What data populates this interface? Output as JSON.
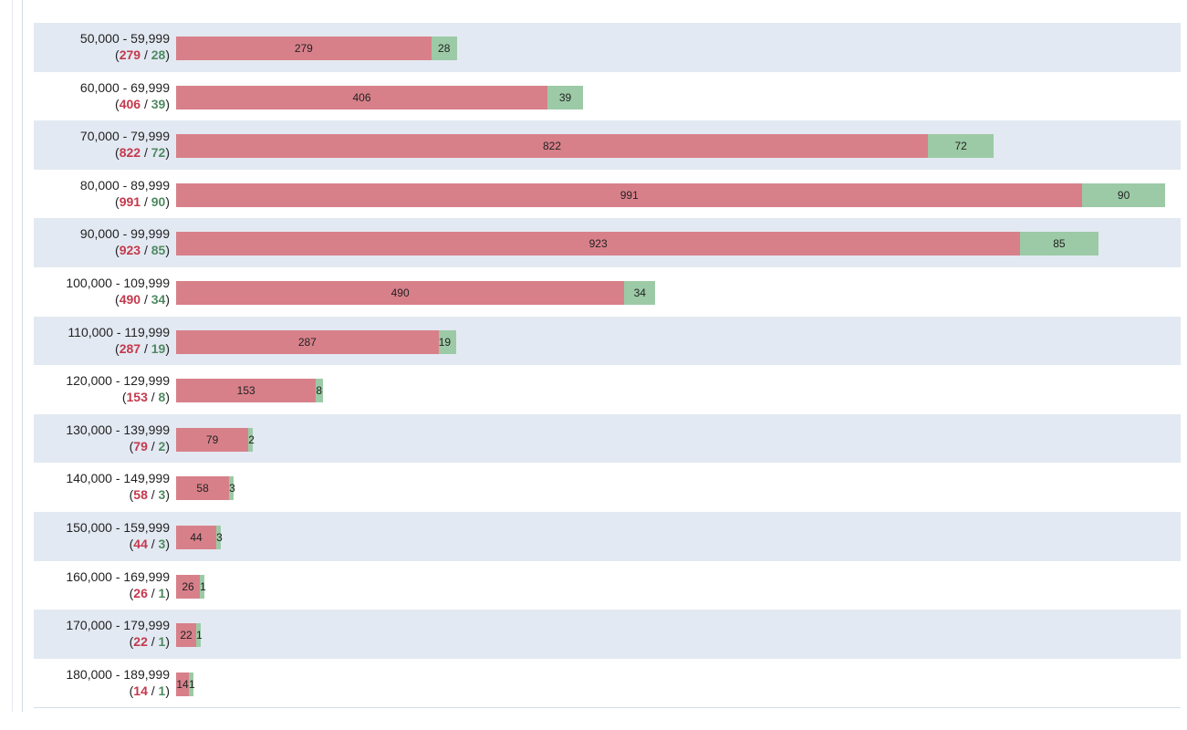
{
  "chart_data": {
    "type": "bar",
    "orientation": "horizontal",
    "stacked": true,
    "categories": [
      "50,000 - 59,999",
      "60,000 - 69,999",
      "70,000 - 79,999",
      "80,000 - 89,999",
      "90,000 - 99,999",
      "100,000 - 109,999",
      "110,000 - 119,999",
      "120,000 - 129,999",
      "130,000 - 139,999",
      "140,000 - 149,999",
      "150,000 - 159,999",
      "160,000 - 169,999",
      "170,000 - 179,999",
      "180,000 - 189,999"
    ],
    "series": [
      {
        "color": "#d8808a",
        "values": [
          279,
          406,
          822,
          991,
          923,
          490,
          287,
          153,
          79,
          58,
          44,
          26,
          22,
          14
        ]
      },
      {
        "color": "#9ccaa6",
        "values": [
          28,
          39,
          72,
          90,
          85,
          34,
          19,
          8,
          2,
          3,
          3,
          1,
          1,
          1
        ]
      }
    ],
    "xlim": [
      0,
      1090
    ],
    "grid": false,
    "legend": "none"
  }
}
